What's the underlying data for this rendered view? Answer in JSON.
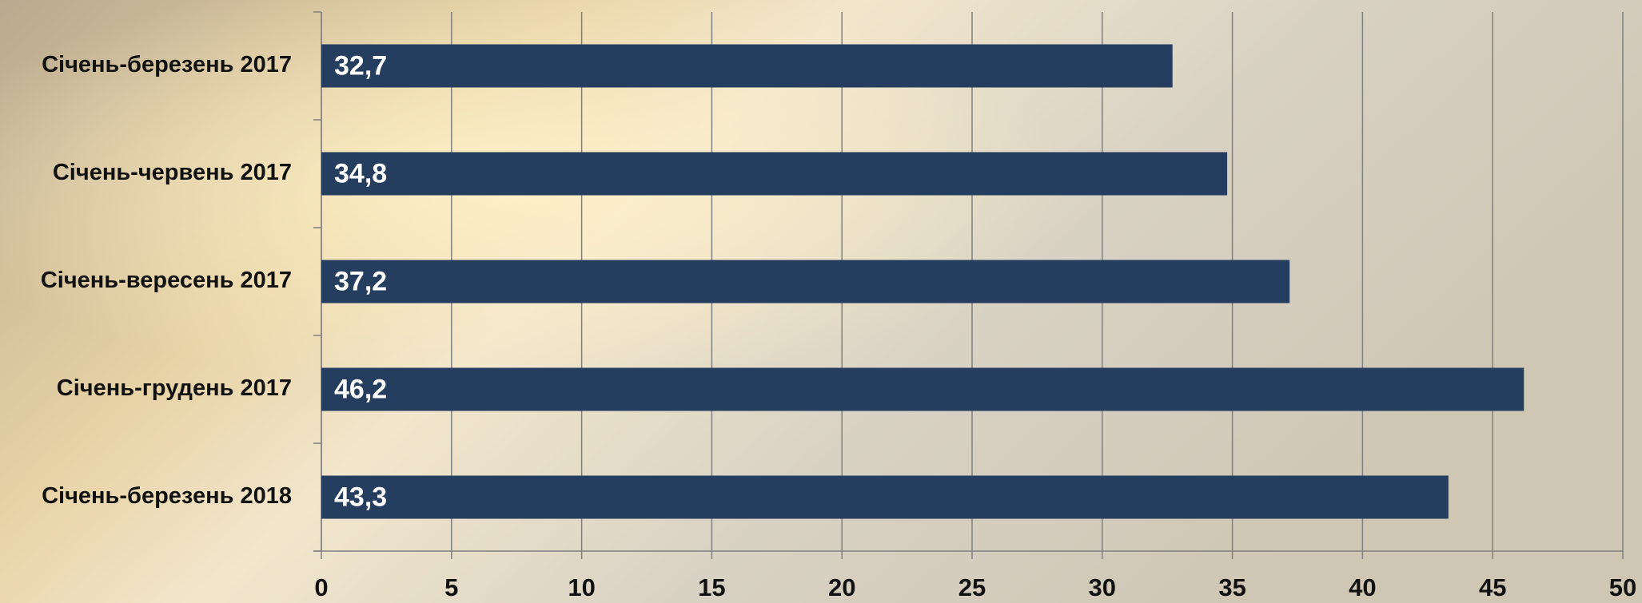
{
  "chart_data": {
    "type": "bar",
    "orientation": "horizontal",
    "categories": [
      "Січень-березень 2017",
      "Січень-червень 2017",
      "Січень-вересень 2017",
      "Січень-грудень 2017",
      "Січень-березень 2018"
    ],
    "values": [
      32.7,
      34.8,
      37.2,
      46.2,
      43.3
    ],
    "value_labels": [
      "32,7",
      "34,8",
      "37,2",
      "46,2",
      "43,3"
    ],
    "color": "#253d5f",
    "xlim": [
      0,
      50
    ],
    "xticks": [
      0,
      5,
      10,
      15,
      20,
      25,
      30,
      35,
      40,
      45,
      50
    ],
    "grid": true
  }
}
